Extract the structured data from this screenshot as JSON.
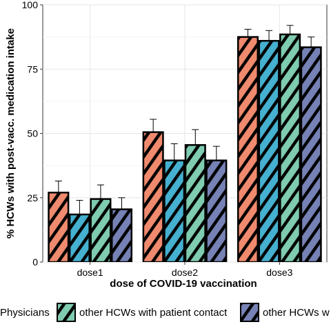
{
  "chart_data": {
    "type": "bar",
    "xlabel": "dose of COVID-19 vaccination",
    "ylabel": "% HCWs with post-vacc. medication intake",
    "categories": [
      "dose1",
      "dose2",
      "dose3"
    ],
    "ylim": [
      0,
      100
    ],
    "yticks": [
      0,
      25,
      50,
      75,
      100
    ],
    "grid": true,
    "legend_position": "bottom",
    "series": [
      {
        "name": "Physicians",
        "color": "#f08a6e",
        "values": [
          27,
          50.5,
          87.5
        ],
        "error_upper": [
          31.5,
          55.5,
          90.5
        ]
      },
      {
        "name": "",
        "color": "#45b0cf",
        "values": [
          18.5,
          39.5,
          86
        ],
        "error_upper": [
          24,
          46,
          90
        ]
      },
      {
        "name": "other HCWs with patient contact",
        "color": "#7fccb0",
        "values": [
          24.5,
          45.5,
          88.5
        ],
        "error_upper": [
          30,
          51.5,
          92
        ]
      },
      {
        "name": "other HCWs w",
        "color": "#7682b5",
        "values": [
          20.5,
          39.5,
          83.5
        ],
        "error_upper": [
          25,
          45,
          87.5
        ]
      }
    ]
  }
}
